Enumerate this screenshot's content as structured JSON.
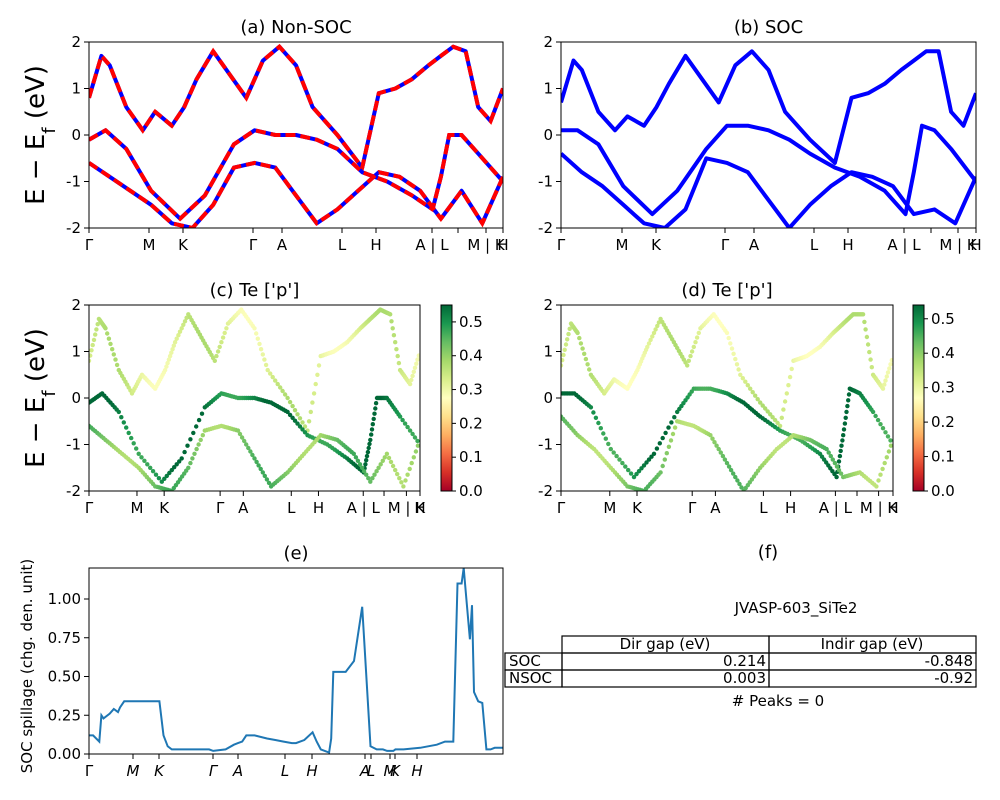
{
  "ylabel_main": "E − E",
  "ylabel_sub": "f",
  "ylabel_unit": " (eV)",
  "kpath_labels": [
    "Γ",
    "M",
    "K",
    "Γ",
    "A",
    "L",
    "H",
    "A | L",
    "M | K",
    "H"
  ],
  "kpath_labels_e": [
    "Γ",
    "M",
    "K",
    "Γ",
    "A",
    "L",
    "H",
    "A",
    "L",
    "M",
    "K",
    "H"
  ],
  "colors": {
    "soc": "#0000ff",
    "nsoc": "#ff0000",
    "spillage": "#1f77b4"
  },
  "chart_data": [
    {
      "id": "a",
      "type": "line",
      "title": "(a) Non-SOC",
      "ylim": [
        -2,
        2
      ],
      "yticks": [
        -2,
        -1,
        0,
        1,
        2
      ],
      "series": [
        {
          "name": "",
          "x": [
            0,
            0.3,
            0.5,
            0.9,
            1.3,
            1.6,
            2.0,
            2.3,
            2.6,
            3.0,
            3.4,
            3.8,
            4.2,
            4.6,
            5.0,
            5.4,
            6.0,
            6.6,
            7.0,
            7.4,
            7.8,
            8.2,
            8.5,
            8.8,
            9.1,
            9.4,
            9.7,
            10.0
          ],
          "y": [
            0.8,
            1.7,
            1.5,
            0.6,
            0.1,
            0.5,
            0.2,
            0.6,
            1.2,
            1.8,
            1.3,
            0.8,
            1.6,
            1.9,
            1.5,
            0.6,
            0.0,
            -0.7,
            0.9,
            1.0,
            1.2,
            1.5,
            1.7,
            1.9,
            1.8,
            0.6,
            0.3,
            1.0
          ]
        },
        {
          "name": "",
          "x": [
            0,
            0.4,
            0.9,
            1.5,
            2.2,
            2.8,
            3.5,
            4.0,
            4.5,
            5.0,
            5.5,
            6.0,
            6.6,
            7.2,
            7.8,
            8.3,
            8.5,
            8.7,
            9.0,
            9.4,
            10.0
          ],
          "y": [
            -0.1,
            0.1,
            -0.3,
            -1.2,
            -1.8,
            -1.3,
            -0.2,
            0.1,
            0.0,
            0.0,
            -0.1,
            -0.3,
            -0.8,
            -1.0,
            -1.3,
            -1.6,
            -0.9,
            0.0,
            0.0,
            -0.4,
            -1.0
          ]
        },
        {
          "name": "",
          "x": [
            0,
            0.5,
            1.0,
            1.5,
            2.0,
            2.5,
            3.0,
            3.5,
            4.0,
            4.5,
            5.0,
            5.5,
            6.0,
            6.5,
            7.0,
            7.5,
            8.0,
            8.5,
            9.0,
            9.5,
            10.0
          ],
          "y": [
            -0.6,
            -0.9,
            -1.2,
            -1.5,
            -1.9,
            -2.0,
            -1.5,
            -0.7,
            -0.6,
            -0.7,
            -1.3,
            -1.9,
            -1.6,
            -1.2,
            -0.8,
            -0.9,
            -1.2,
            -1.8,
            -1.2,
            -1.9,
            -0.9
          ]
        }
      ]
    },
    {
      "id": "b",
      "type": "line",
      "title": "(b) SOC",
      "ylim": [
        -2,
        2
      ],
      "yticks": [
        -2,
        -1,
        0,
        1,
        2
      ],
      "series": [
        {
          "name": "",
          "x": [
            0,
            0.3,
            0.5,
            0.9,
            1.3,
            1.6,
            2.0,
            2.3,
            2.6,
            3.0,
            3.4,
            3.8,
            4.2,
            4.6,
            5.0,
            5.4,
            6.0,
            6.6,
            7.0,
            7.4,
            7.8,
            8.2,
            8.5,
            8.8,
            9.1,
            9.4,
            9.7,
            10.0
          ],
          "y": [
            0.7,
            1.6,
            1.4,
            0.5,
            0.1,
            0.4,
            0.2,
            0.6,
            1.1,
            1.7,
            1.2,
            0.7,
            1.5,
            1.8,
            1.4,
            0.5,
            -0.1,
            -0.6,
            0.8,
            0.9,
            1.1,
            1.4,
            1.6,
            1.8,
            1.8,
            0.5,
            0.2,
            0.9
          ]
        },
        {
          "name": "",
          "x": [
            0,
            0.4,
            0.9,
            1.5,
            2.2,
            2.8,
            3.5,
            4.0,
            4.5,
            5.0,
            5.5,
            6.0,
            6.6,
            7.2,
            7.8,
            8.3,
            8.5,
            8.7,
            9.0,
            9.4,
            10.0
          ],
          "y": [
            0.1,
            0.1,
            -0.2,
            -1.1,
            -1.7,
            -1.2,
            -0.3,
            0.2,
            0.2,
            0.1,
            -0.1,
            -0.4,
            -0.7,
            -0.9,
            -1.2,
            -1.7,
            -0.8,
            0.2,
            0.1,
            -0.3,
            -1.0
          ]
        },
        {
          "name": "",
          "x": [
            0,
            0.5,
            1.0,
            1.5,
            2.0,
            2.5,
            3.0,
            3.5,
            4.0,
            4.5,
            5.0,
            5.5,
            6.0,
            6.5,
            7.0,
            7.5,
            8.0,
            8.5,
            9.0,
            9.5,
            10.0
          ],
          "y": [
            -0.4,
            -0.8,
            -1.1,
            -1.5,
            -1.9,
            -2.0,
            -1.6,
            -0.5,
            -0.6,
            -0.8,
            -1.4,
            -2.0,
            -1.5,
            -1.1,
            -0.8,
            -0.9,
            -1.1,
            -1.7,
            -1.6,
            -1.9,
            -0.9
          ]
        }
      ]
    },
    {
      "id": "c",
      "type": "scatter",
      "title": "(c)  Te ['p']",
      "ylim": [
        -2,
        2
      ],
      "yticks": [
        -2,
        -1,
        0,
        1,
        2
      ],
      "colorbar": {
        "min": 0.0,
        "max": 0.55,
        "ticks": [
          0.0,
          0.1,
          0.2,
          0.3,
          0.4,
          0.5
        ]
      }
    },
    {
      "id": "d",
      "type": "scatter",
      "title": "(d) Te ['p']",
      "ylim": [
        -2,
        2
      ],
      "yticks": [
        -2,
        -1,
        0,
        1,
        2
      ],
      "colorbar": {
        "min": 0.0,
        "max": 0.54,
        "ticks": [
          0.0,
          0.1,
          0.2,
          0.3,
          0.4,
          0.5
        ]
      }
    },
    {
      "id": "e",
      "type": "line",
      "title": "(e)",
      "ylabel": "SOC spillage (chg. den. unit)",
      "ylim": [
        0,
        1.2
      ],
      "yticks": [
        0.0,
        0.25,
        0.5,
        0.75,
        1.0
      ],
      "series": [
        {
          "name": "",
          "x": [
            0,
            0.1,
            0.25,
            0.3,
            0.35,
            0.5,
            0.6,
            0.7,
            0.75,
            0.85,
            1.0,
            1.5,
            1.7,
            1.8,
            1.9,
            2.0,
            2.2,
            2.6,
            2.9,
            3.0,
            3.3,
            3.5,
            3.6,
            3.7,
            3.8,
            4.0,
            4.3,
            4.5,
            4.7,
            4.9,
            5.0,
            5.2,
            5.4,
            5.5,
            5.6,
            5.8,
            5.85,
            5.9,
            6.0,
            6.2,
            6.4,
            6.6,
            6.8,
            6.95,
            7.0,
            7.1,
            7.2,
            7.3,
            7.35,
            7.4,
            7.5,
            7.6,
            8.0,
            8.4,
            8.6,
            8.8,
            8.9,
            9.0,
            9.05,
            9.1,
            9.2,
            9.25,
            9.3,
            9.4,
            9.5,
            9.6,
            9.7,
            9.8,
            10.0
          ],
          "y": [
            0.12,
            0.12,
            0.08,
            0.25,
            0.23,
            0.26,
            0.29,
            0.27,
            0.3,
            0.34,
            0.34,
            0.34,
            0.34,
            0.12,
            0.05,
            0.03,
            0.03,
            0.03,
            0.03,
            0.02,
            0.03,
            0.06,
            0.07,
            0.08,
            0.12,
            0.12,
            0.1,
            0.09,
            0.08,
            0.07,
            0.07,
            0.09,
            0.14,
            0.08,
            0.03,
            0.01,
            0.1,
            0.53,
            0.53,
            0.53,
            0.6,
            0.95,
            0.05,
            0.03,
            0.03,
            0.03,
            0.02,
            0.02,
            0.02,
            0.03,
            0.03,
            0.03,
            0.04,
            0.06,
            0.08,
            0.08,
            1.1,
            1.1,
            1.2,
            1.05,
            0.74,
            0.96,
            0.4,
            0.34,
            0.33,
            0.03,
            0.03,
            0.04,
            0.04
          ]
        }
      ]
    }
  ],
  "panel_f": {
    "title": "(f)",
    "subtitle": "JVASP-603_SiTe2",
    "table": {
      "columns": [
        "Dir gap (eV)",
        "Indir gap (eV)"
      ],
      "rows": [
        {
          "label": "SOC",
          "values": [
            "0.214",
            "-0.848"
          ]
        },
        {
          "label": "NSOC",
          "values": [
            "0.003",
            "-0.92"
          ]
        }
      ]
    },
    "footer": "# Peaks = 0"
  }
}
